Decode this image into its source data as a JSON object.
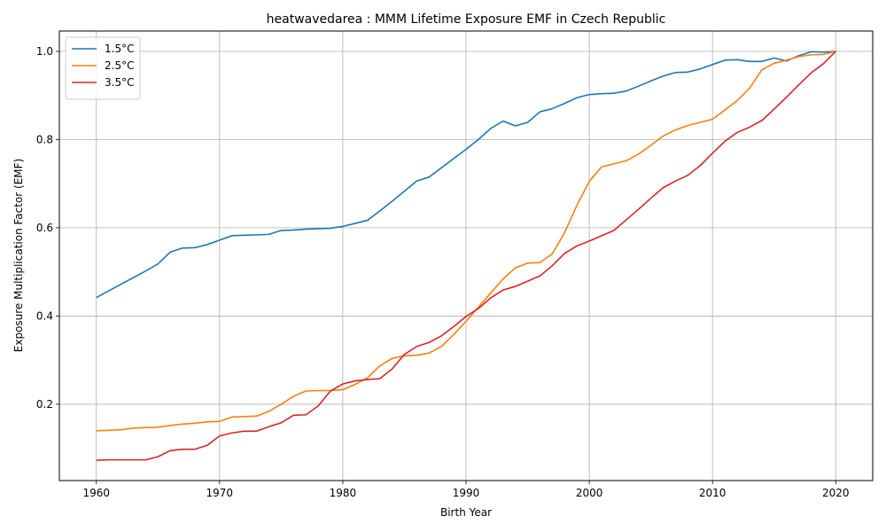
{
  "chart_data": {
    "type": "line",
    "title": "heatwavedarea : MMM Lifetime Exposure EMF in Czech Republic",
    "xlabel": "Birth Year",
    "ylabel": "Exposure Multiplication Factor (EMF)",
    "xlim": [
      1957,
      2023
    ],
    "ylim": [
      0.027,
      1.046
    ],
    "xticks": [
      1960,
      1970,
      1980,
      1990,
      2000,
      2010,
      2020
    ],
    "xtick_labels": [
      "1960",
      "1970",
      "1980",
      "1990",
      "2000",
      "2010",
      "2020"
    ],
    "yticks": [
      0.2,
      0.4,
      0.6,
      0.8,
      1.0
    ],
    "ytick_labels": [
      "0.2",
      "0.4",
      "0.6",
      "0.8",
      "1.0"
    ],
    "grid": true,
    "legend_position": "top-left",
    "x": [
      1960,
      1961,
      1962,
      1963,
      1964,
      1965,
      1966,
      1967,
      1968,
      1969,
      1970,
      1971,
      1972,
      1973,
      1974,
      1975,
      1976,
      1977,
      1978,
      1979,
      1980,
      1981,
      1982,
      1983,
      1984,
      1985,
      1986,
      1987,
      1988,
      1989,
      1990,
      1991,
      1992,
      1993,
      1994,
      1995,
      1996,
      1997,
      1998,
      1999,
      2000,
      2001,
      2002,
      2003,
      2004,
      2005,
      2006,
      2007,
      2008,
      2009,
      2010,
      2011,
      2012,
      2013,
      2014,
      2015,
      2016,
      2017,
      2018,
      2019,
      2020
    ],
    "series": [
      {
        "name": "1.5°C",
        "color": "#1f77b4",
        "values": [
          0.442,
          0.457,
          0.472,
          0.487,
          0.502,
          0.518,
          0.545,
          0.554,
          0.555,
          0.562,
          0.572,
          0.582,
          0.583,
          0.584,
          0.585,
          0.594,
          0.595,
          0.597,
          0.598,
          0.599,
          0.603,
          0.61,
          0.617,
          0.638,
          0.66,
          0.683,
          0.706,
          0.715,
          0.736,
          0.757,
          0.778,
          0.8,
          0.825,
          0.842,
          0.831,
          0.839,
          0.863,
          0.87,
          0.882,
          0.895,
          0.902,
          0.904,
          0.905,
          0.91,
          0.921,
          0.933,
          0.944,
          0.952,
          0.953,
          0.96,
          0.97,
          0.98,
          0.981,
          0.977,
          0.977,
          0.985,
          0.978,
          0.99,
          0.999,
          0.998,
          1.0
        ]
      },
      {
        "name": "2.5°C",
        "color": "#ff7f0e",
        "values": [
          0.14,
          0.141,
          0.142,
          0.146,
          0.147,
          0.148,
          0.152,
          0.155,
          0.157,
          0.16,
          0.161,
          0.171,
          0.172,
          0.173,
          0.184,
          0.2,
          0.218,
          0.23,
          0.231,
          0.231,
          0.233,
          0.245,
          0.26,
          0.287,
          0.304,
          0.31,
          0.311,
          0.316,
          0.331,
          0.358,
          0.388,
          0.42,
          0.452,
          0.484,
          0.509,
          0.52,
          0.521,
          0.541,
          0.589,
          0.651,
          0.705,
          0.738,
          0.745,
          0.752,
          0.767,
          0.787,
          0.808,
          0.822,
          0.832,
          0.839,
          0.846,
          0.867,
          0.888,
          0.916,
          0.958,
          0.973,
          0.98,
          0.988,
          0.992,
          0.993,
          1.0
        ]
      },
      {
        "name": "3.5°C",
        "color": "#d62728",
        "values": [
          0.073,
          0.074,
          0.074,
          0.074,
          0.074,
          0.081,
          0.095,
          0.098,
          0.098,
          0.107,
          0.128,
          0.135,
          0.139,
          0.139,
          0.149,
          0.158,
          0.175,
          0.176,
          0.196,
          0.23,
          0.246,
          0.253,
          0.256,
          0.258,
          0.28,
          0.313,
          0.331,
          0.34,
          0.355,
          0.376,
          0.399,
          0.417,
          0.441,
          0.459,
          0.467,
          0.479,
          0.491,
          0.514,
          0.542,
          0.559,
          0.57,
          0.582,
          0.594,
          0.618,
          0.642,
          0.667,
          0.691,
          0.706,
          0.719,
          0.741,
          0.769,
          0.796,
          0.816,
          0.828,
          0.843,
          0.869,
          0.896,
          0.924,
          0.951,
          0.972,
          1.0
        ]
      }
    ]
  }
}
